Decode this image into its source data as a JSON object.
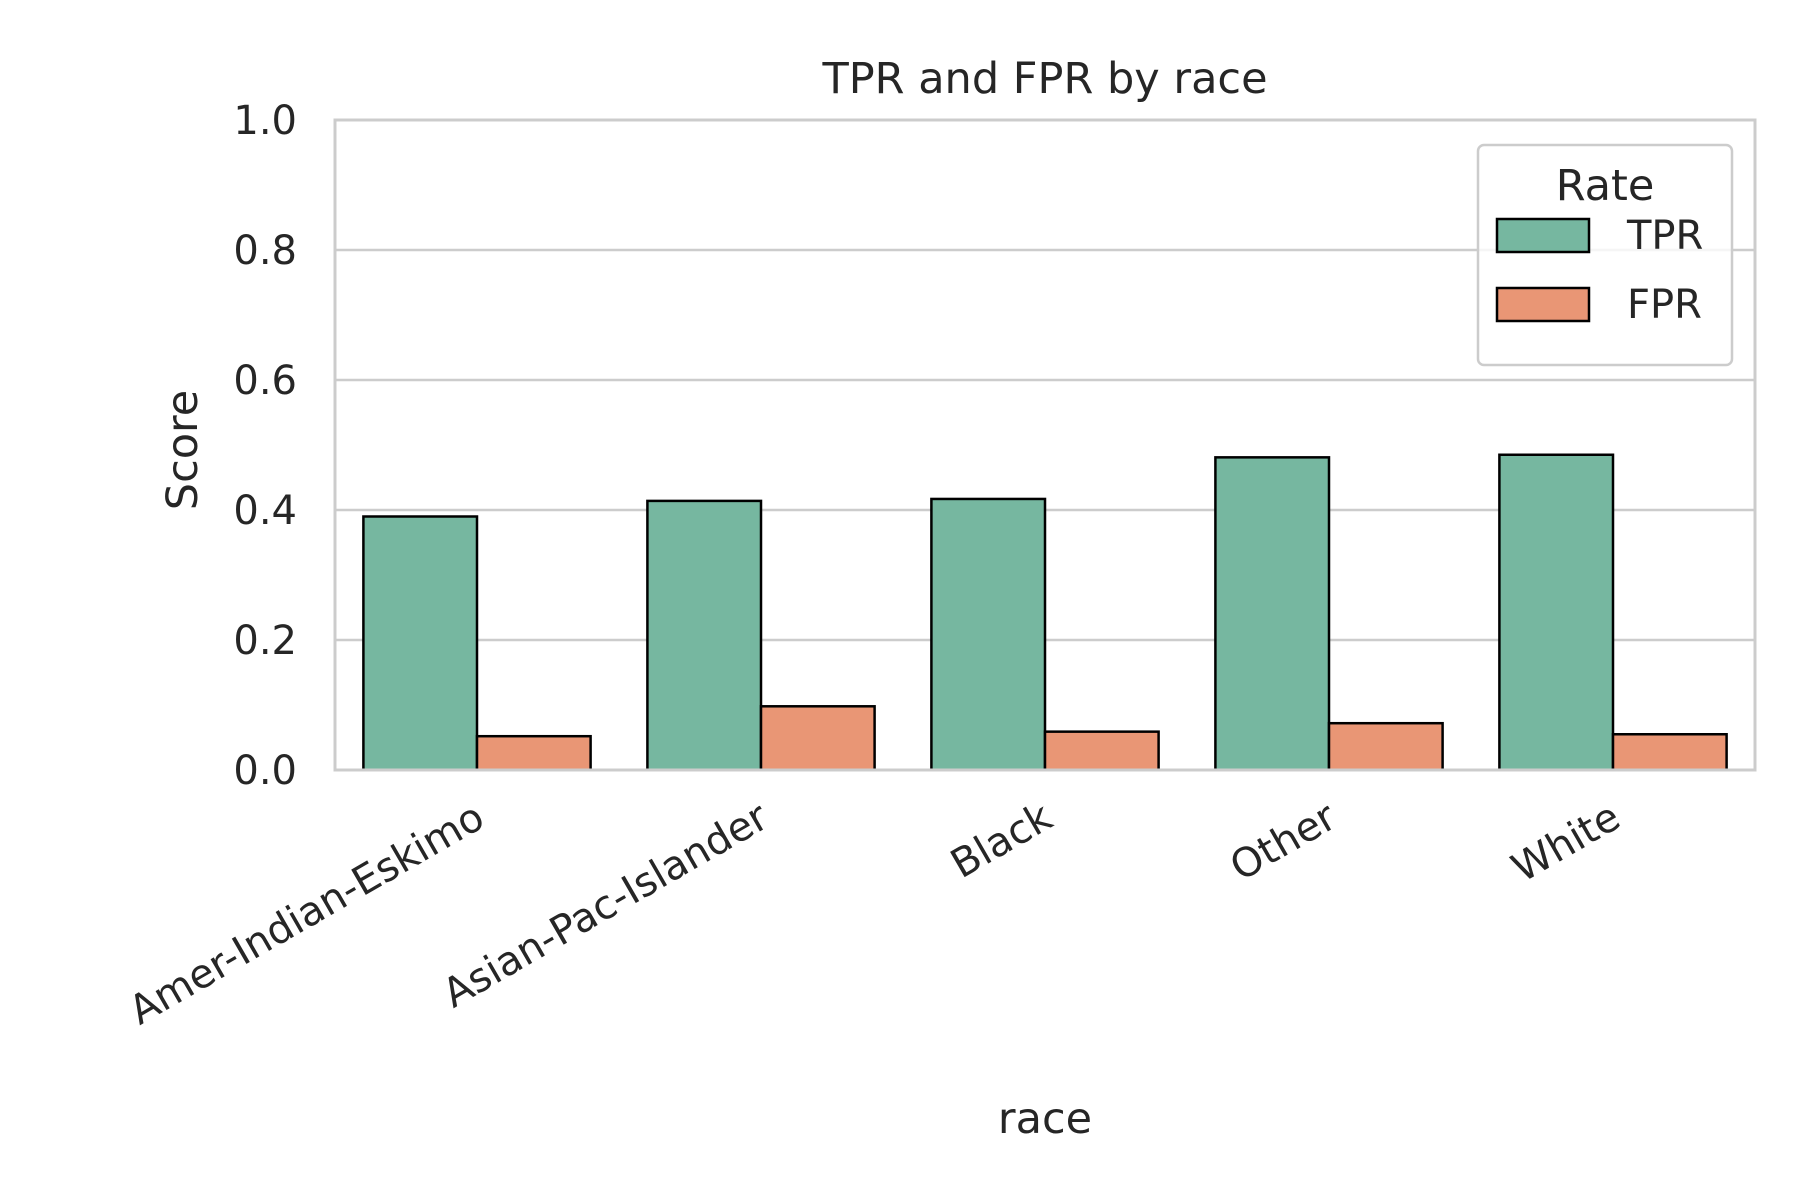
{
  "chart_data": {
    "type": "bar",
    "title": "TPR and FPR by race",
    "xlabel": "race",
    "ylabel": "Score",
    "ylim": [
      0,
      1.0
    ],
    "yticks": [
      "0.0",
      "0.2",
      "0.4",
      "0.6",
      "0.8",
      "1.0"
    ],
    "grid": "horizontal",
    "categories": [
      "Amer-Indian-Eskimo",
      "Asian-Pac-Islander",
      "Black",
      "Other",
      "White"
    ],
    "series": [
      {
        "name": "TPR",
        "color": "#76b7a0",
        "values": [
          0.39,
          0.414,
          0.417,
          0.481,
          0.485
        ]
      },
      {
        "name": "FPR",
        "color": "#e99675",
        "values": [
          0.052,
          0.098,
          0.059,
          0.072,
          0.055
        ]
      }
    ],
    "legend": {
      "title": "Rate",
      "placement": "top-right"
    },
    "colors": {
      "grid": "#cccccc",
      "bar_edge": "#000000",
      "text": "#262626"
    }
  }
}
